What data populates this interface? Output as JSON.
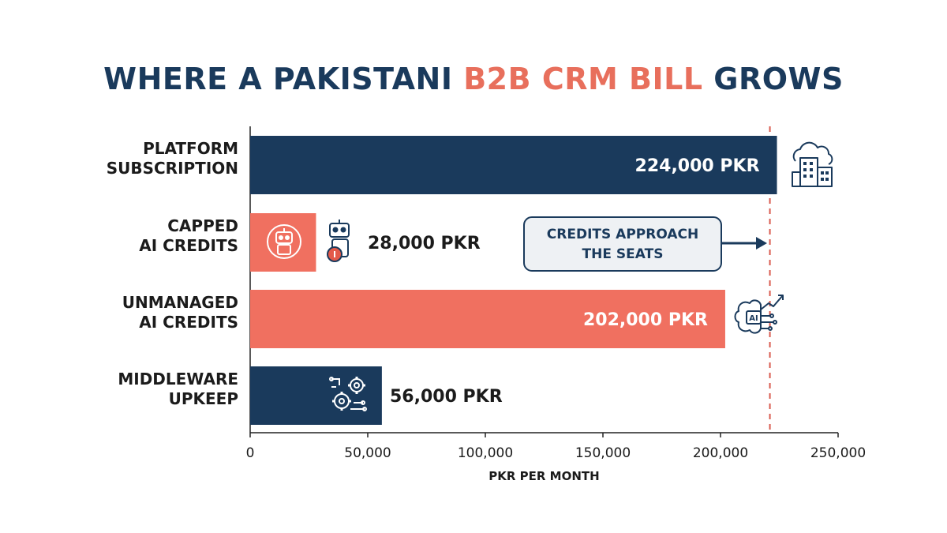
{
  "title": {
    "part1": "WHERE A PAKISTANI ",
    "part2": "B2B CRM BILL",
    "part3": " GROWS"
  },
  "colors": {
    "navy": "#1a3a5c",
    "coral": "#f07060",
    "threshold": "#d95a4e",
    "callout_bg": "#eef1f4"
  },
  "chart_data": {
    "type": "bar",
    "orientation": "horizontal",
    "categories": [
      [
        "PLATFORM",
        "SUBSCRIPTION"
      ],
      [
        "CAPPED",
        "AI CREDITS"
      ],
      [
        "UNMANAGED",
        "AI CREDITS"
      ],
      [
        "MIDDLEWARE",
        "UPKEEP"
      ]
    ],
    "values": [
      224000,
      28000,
      202000,
      56000
    ],
    "value_labels": [
      "224,000 PKR",
      "28,000 PKR",
      "202,000 PKR",
      "56,000 PKR"
    ],
    "bar_colors": [
      "#1a3a5c",
      "#f07060",
      "#f07060",
      "#1a3a5c"
    ],
    "icons": [
      "cloud-building-icon",
      "robot-icon",
      "ai-brain-growth-icon",
      "gears-circuit-icon"
    ],
    "xlabel": "PKR PER MONTH",
    "xlim": [
      0,
      250000
    ],
    "xticks": [
      0,
      50000,
      100000,
      150000,
      200000,
      250000
    ],
    "xtick_labels": [
      "0",
      "50,000",
      "100,000",
      "150,000",
      "200,000",
      "250,000"
    ],
    "reference_line": {
      "value": 221000,
      "style": "dashed"
    },
    "annotation": {
      "lines": [
        "CREDITS APPROACH",
        "THE SEATS"
      ]
    },
    "grid": false,
    "legend": "none"
  }
}
